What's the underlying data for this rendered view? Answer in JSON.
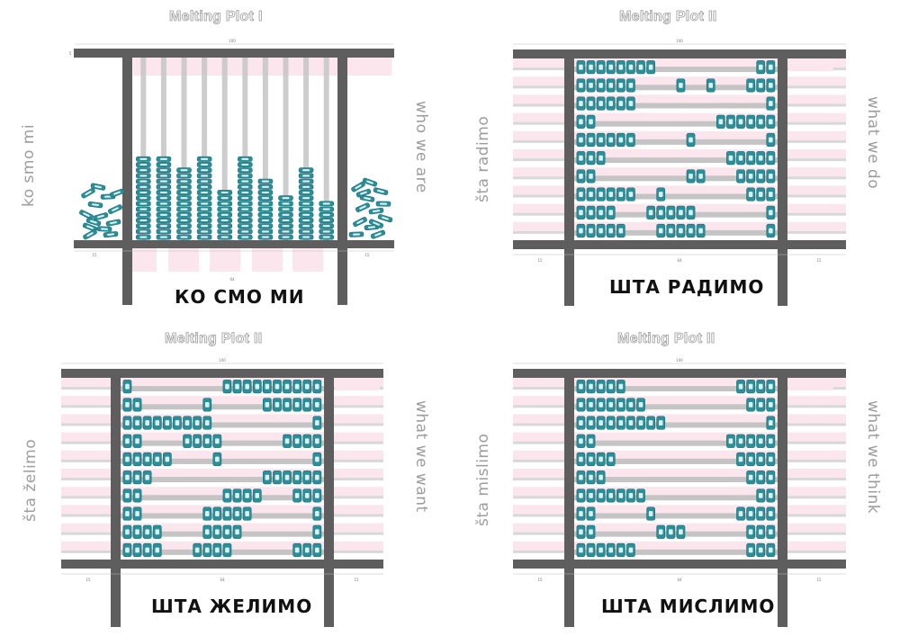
{
  "colors": {
    "frame": "#5e5e5e",
    "rod": "#c4c4c4",
    "bead": "#2b8f99",
    "bead_border": "#1d6b73",
    "pink": "#fbe6ee",
    "title": "#9a9a9a",
    "side_label": "#9d9d9d"
  },
  "plots": [
    {
      "title": "Melting Plot I",
      "left_label": "ko smo mi",
      "right_label": "who we are",
      "cyrillic_label": "КО СМО МИ",
      "dim_top": "100",
      "dim_left": "15",
      "dim_mid": "64",
      "dim_right": "15",
      "dim_side": "5",
      "stacks": [
        8,
        15,
        15,
        13,
        15,
        9,
        15,
        11,
        8,
        13,
        7,
        14
      ]
    },
    {
      "title": "Melting Plot II",
      "left_label": "šta radimo",
      "right_label": "what we do",
      "cyrillic_label": "ШТА РАДИМО",
      "dim_top": "100",
      "dim_left": "15",
      "dim_mid": "64",
      "dim_right": "15",
      "rows": [
        [
          1,
          1,
          1,
          1,
          1,
          1,
          1,
          1,
          0,
          0,
          0,
          0,
          0,
          0,
          0,
          0,
          0,
          0,
          1,
          1
        ],
        [
          1,
          1,
          1,
          1,
          1,
          1,
          0,
          0,
          0,
          0,
          1,
          0,
          0,
          1,
          0,
          0,
          0,
          1,
          1,
          1
        ],
        [
          1,
          1,
          1,
          1,
          1,
          1,
          0,
          0,
          0,
          0,
          0,
          0,
          0,
          0,
          0,
          0,
          0,
          0,
          0,
          1
        ],
        [
          1,
          1,
          0,
          0,
          0,
          0,
          0,
          0,
          0,
          0,
          0,
          0,
          0,
          0,
          1,
          1,
          1,
          1,
          1,
          1
        ],
        [
          1,
          1,
          1,
          1,
          1,
          1,
          0,
          0,
          0,
          0,
          0,
          1,
          0,
          0,
          0,
          0,
          0,
          0,
          0,
          1
        ],
        [
          1,
          1,
          1,
          0,
          0,
          0,
          0,
          0,
          0,
          0,
          0,
          0,
          0,
          0,
          0,
          1,
          1,
          1,
          1,
          1
        ],
        [
          1,
          1,
          0,
          0,
          0,
          0,
          0,
          0,
          0,
          0,
          0,
          1,
          1,
          0,
          0,
          0,
          1,
          1,
          1,
          1
        ],
        [
          1,
          1,
          1,
          1,
          1,
          1,
          0,
          0,
          1,
          0,
          0,
          0,
          0,
          0,
          0,
          0,
          0,
          1,
          1,
          1
        ],
        [
          1,
          1,
          1,
          1,
          0,
          0,
          0,
          1,
          1,
          1,
          1,
          1,
          0,
          0,
          0,
          0,
          0,
          0,
          0,
          1
        ],
        [
          1,
          1,
          1,
          1,
          1,
          0,
          0,
          0,
          1,
          1,
          1,
          1,
          1,
          0,
          0,
          0,
          0,
          0,
          0,
          1
        ]
      ]
    },
    {
      "title": "Melting Plot II",
      "left_label": "šta želimo",
      "right_label": "what we want",
      "cyrillic_label": "ШТА ЖЕЛИМО",
      "dim_top": "100",
      "dim_left": "15",
      "dim_mid": "64",
      "dim_right": "15",
      "rows": [
        [
          1,
          0,
          0,
          0,
          0,
          0,
          0,
          0,
          0,
          0,
          1,
          1,
          1,
          1,
          1,
          1,
          1,
          1,
          1,
          1
        ],
        [
          1,
          1,
          0,
          0,
          0,
          0,
          0,
          0,
          1,
          0,
          0,
          0,
          0,
          0,
          1,
          1,
          1,
          1,
          1,
          1
        ],
        [
          1,
          1,
          1,
          1,
          1,
          1,
          1,
          1,
          1,
          0,
          0,
          0,
          0,
          0,
          0,
          0,
          0,
          0,
          0,
          1
        ],
        [
          1,
          1,
          0,
          0,
          0,
          0,
          1,
          1,
          1,
          1,
          0,
          0,
          0,
          0,
          0,
          0,
          1,
          1,
          1,
          1
        ],
        [
          1,
          1,
          1,
          1,
          1,
          0,
          0,
          0,
          0,
          1,
          0,
          0,
          0,
          0,
          0,
          0,
          0,
          0,
          0,
          1
        ],
        [
          1,
          1,
          1,
          0,
          0,
          0,
          0,
          0,
          0,
          0,
          0,
          0,
          0,
          0,
          1,
          1,
          1,
          1,
          1,
          1
        ],
        [
          1,
          1,
          0,
          0,
          0,
          0,
          0,
          0,
          0,
          0,
          1,
          1,
          1,
          1,
          0,
          0,
          0,
          1,
          1,
          1
        ],
        [
          1,
          1,
          0,
          0,
          0,
          0,
          0,
          0,
          1,
          1,
          1,
          1,
          1,
          0,
          0,
          0,
          0,
          0,
          0,
          1
        ],
        [
          1,
          1,
          1,
          1,
          0,
          0,
          0,
          0,
          1,
          1,
          1,
          1,
          0,
          0,
          0,
          0,
          0,
          0,
          0,
          1
        ],
        [
          1,
          1,
          1,
          1,
          0,
          0,
          0,
          1,
          1,
          1,
          1,
          0,
          0,
          0,
          0,
          0,
          0,
          1,
          1,
          1
        ]
      ]
    },
    {
      "title": "Melting Plot II",
      "left_label": "šta mislimo",
      "right_label": "what we think",
      "cyrillic_label": "ШТА МИСЛИМО",
      "dim_top": "100",
      "dim_left": "15",
      "dim_mid": "64",
      "dim_right": "15",
      "rows": [
        [
          1,
          1,
          1,
          1,
          1,
          0,
          0,
          0,
          0,
          0,
          0,
          0,
          0,
          0,
          0,
          0,
          1,
          1,
          1,
          1
        ],
        [
          1,
          1,
          1,
          1,
          1,
          1,
          1,
          0,
          0,
          0,
          0,
          0,
          0,
          0,
          0,
          0,
          0,
          1,
          1,
          1
        ],
        [
          1,
          1,
          1,
          1,
          1,
          1,
          1,
          1,
          1,
          0,
          0,
          0,
          0,
          0,
          0,
          0,
          0,
          0,
          0,
          1
        ],
        [
          1,
          1,
          0,
          0,
          0,
          0,
          0,
          0,
          0,
          0,
          0,
          0,
          0,
          0,
          0,
          1,
          1,
          1,
          1,
          1
        ],
        [
          1,
          1,
          1,
          1,
          0,
          0,
          0,
          0,
          0,
          0,
          0,
          0,
          0,
          0,
          0,
          0,
          1,
          1,
          1,
          1
        ],
        [
          1,
          1,
          1,
          0,
          0,
          0,
          0,
          0,
          0,
          0,
          0,
          0,
          0,
          0,
          0,
          0,
          0,
          1,
          1,
          1
        ],
        [
          1,
          1,
          1,
          1,
          1,
          1,
          1,
          0,
          0,
          0,
          0,
          0,
          0,
          0,
          0,
          0,
          0,
          0,
          1,
          1
        ],
        [
          1,
          1,
          0,
          0,
          0,
          0,
          0,
          1,
          0,
          0,
          0,
          0,
          0,
          0,
          0,
          0,
          1,
          1,
          1,
          1
        ],
        [
          1,
          1,
          0,
          0,
          0,
          0,
          0,
          0,
          1,
          1,
          1,
          0,
          0,
          0,
          0,
          0,
          0,
          1,
          1,
          1
        ],
        [
          1,
          1,
          1,
          1,
          1,
          1,
          0,
          0,
          0,
          0,
          0,
          0,
          0,
          0,
          0,
          0,
          0,
          1,
          1,
          1
        ]
      ]
    }
  ]
}
